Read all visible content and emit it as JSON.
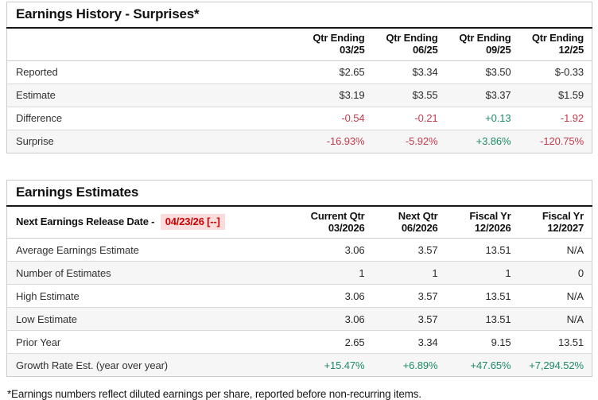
{
  "colors": {
    "neg": "#c23b4b",
    "pos": "#1d8a68",
    "date_red": "#cc0000",
    "date_bg": "#fbdcdc",
    "row_alt_bg": "#f6f6f6",
    "title_rule": "#161616",
    "row_border": "#d9d9d9"
  },
  "earnings_history": {
    "title": "Earnings History - Surprises*",
    "columns": [
      "Qtr Ending\n03/25",
      "Qtr Ending\n06/25",
      "Qtr Ending\n09/25",
      "Qtr Ending\n12/25"
    ],
    "rows": [
      {
        "label": "Reported",
        "values": [
          {
            "t": "$2.65"
          },
          {
            "t": "$3.34"
          },
          {
            "t": "$3.50"
          },
          {
            "t": "$-0.33"
          }
        ]
      },
      {
        "label": "Estimate",
        "values": [
          {
            "t": "$3.19"
          },
          {
            "t": "$3.55"
          },
          {
            "t": "$3.37"
          },
          {
            "t": "$1.59"
          }
        ]
      },
      {
        "label": "Difference",
        "values": [
          {
            "t": "-0.54",
            "tone": "neg"
          },
          {
            "t": "-0.21",
            "tone": "neg"
          },
          {
            "t": "+0.13",
            "tone": "pos"
          },
          {
            "t": "-1.92",
            "tone": "neg"
          }
        ]
      },
      {
        "label": "Surprise",
        "values": [
          {
            "t": "-16.93%",
            "tone": "neg"
          },
          {
            "t": "-5.92%",
            "tone": "neg"
          },
          {
            "t": "+3.86%",
            "tone": "pos"
          },
          {
            "t": "-120.75%",
            "tone": "neg"
          }
        ]
      }
    ]
  },
  "earnings_estimates": {
    "title": "Earnings Estimates",
    "release_label": "Next Earnings Release Date - ",
    "release_date": "04/23/26 [--]",
    "release_tone": "date_red",
    "release_bg": "date_bg",
    "columns": [
      "Current Qtr\n03/2026",
      "Next Qtr\n06/2026",
      "Fiscal Yr\n12/2026",
      "Fiscal Yr\n12/2027"
    ],
    "rows": [
      {
        "label": "Average Earnings Estimate",
        "values": [
          {
            "t": "3.06"
          },
          {
            "t": "3.57"
          },
          {
            "t": "13.51"
          },
          {
            "t": "N/A"
          }
        ]
      },
      {
        "label": "Number of Estimates",
        "values": [
          {
            "t": "1"
          },
          {
            "t": "1"
          },
          {
            "t": "1"
          },
          {
            "t": "0"
          }
        ]
      },
      {
        "label": "High Estimate",
        "values": [
          {
            "t": "3.06"
          },
          {
            "t": "3.57"
          },
          {
            "t": "13.51"
          },
          {
            "t": "N/A"
          }
        ]
      },
      {
        "label": "Low Estimate",
        "values": [
          {
            "t": "3.06"
          },
          {
            "t": "3.57"
          },
          {
            "t": "13.51"
          },
          {
            "t": "N/A"
          }
        ]
      },
      {
        "label": "Prior Year",
        "values": [
          {
            "t": "2.65"
          },
          {
            "t": "3.34"
          },
          {
            "t": "9.15"
          },
          {
            "t": "13.51"
          }
        ]
      },
      {
        "label": "Growth Rate Est. (year over year)",
        "values": [
          {
            "t": "+15.47%",
            "tone": "pos"
          },
          {
            "t": "+6.89%",
            "tone": "pos"
          },
          {
            "t": "+47.65%",
            "tone": "pos"
          },
          {
            "t": "+7,294.52%",
            "tone": "pos"
          }
        ]
      }
    ]
  },
  "footnote": "*Earnings numbers reflect diluted earnings per share, reported before non-recurring items."
}
